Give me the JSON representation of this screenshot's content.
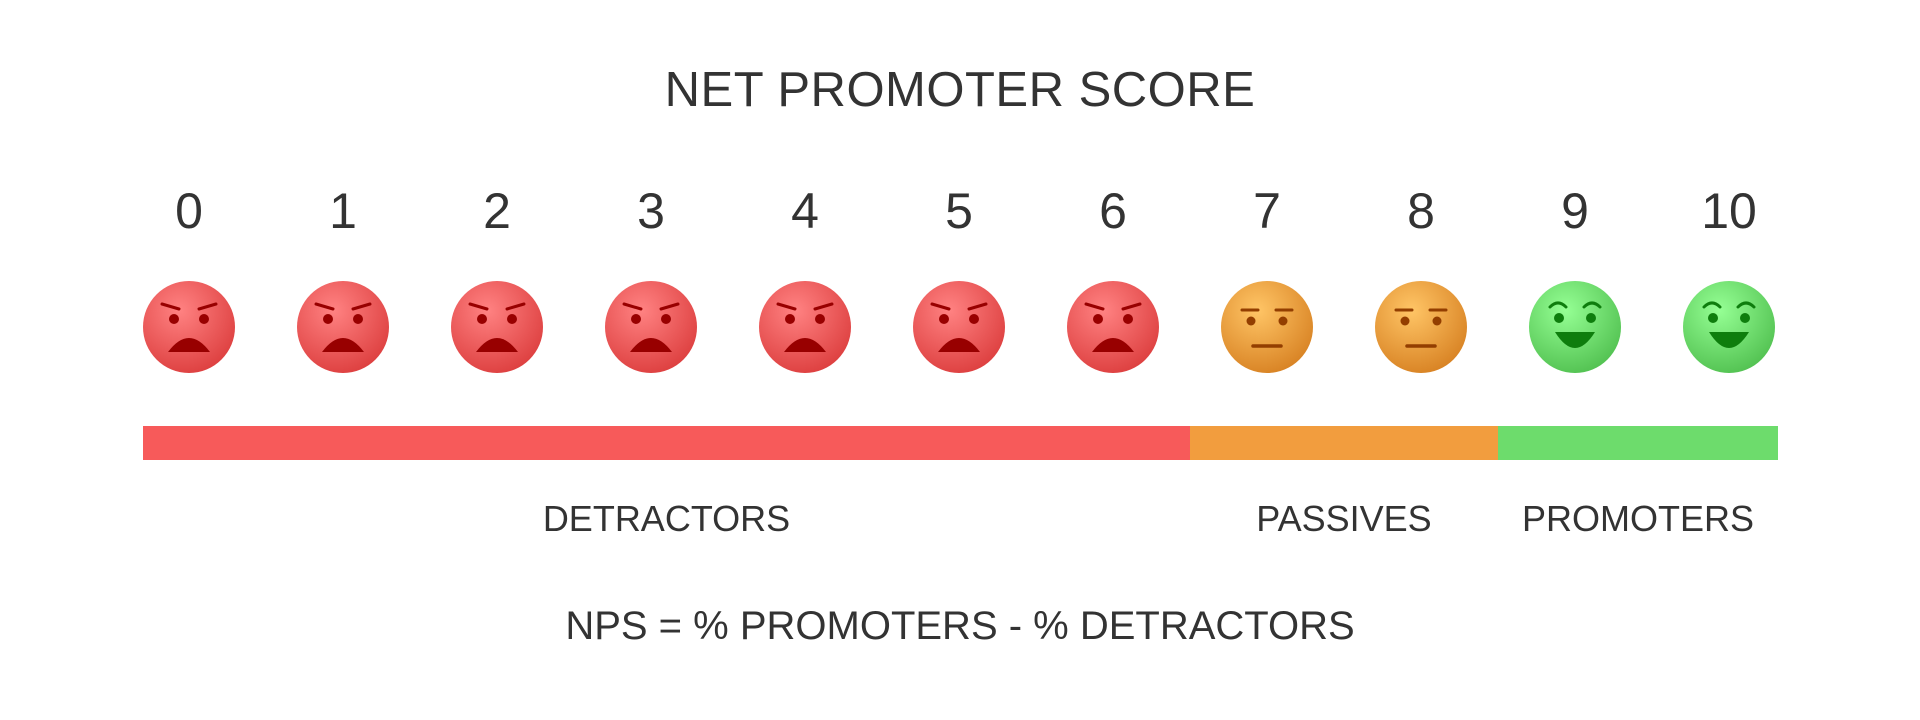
{
  "title": "NET PROMOTER SCORE",
  "scores": [
    "0",
    "1",
    "2",
    "3",
    "4",
    "5",
    "6",
    "7",
    "8",
    "9",
    "10"
  ],
  "categories": [
    {
      "key": "detractors",
      "label": "DETRACTORS",
      "from": 0,
      "to": 6,
      "color": "#f75a5a",
      "face": "sad-face-icon"
    },
    {
      "key": "passives",
      "label": "PASSIVES",
      "from": 7,
      "to": 8,
      "color": "#f29d3e",
      "face": "neutral-face-icon"
    },
    {
      "key": "promoters",
      "label": "PROMOTERS",
      "from": 9,
      "to": 10,
      "color": "#6ddc6c",
      "face": "happy-face-icon"
    }
  ],
  "formula": "NPS = % PROMOTERS - % DETRACTORS"
}
